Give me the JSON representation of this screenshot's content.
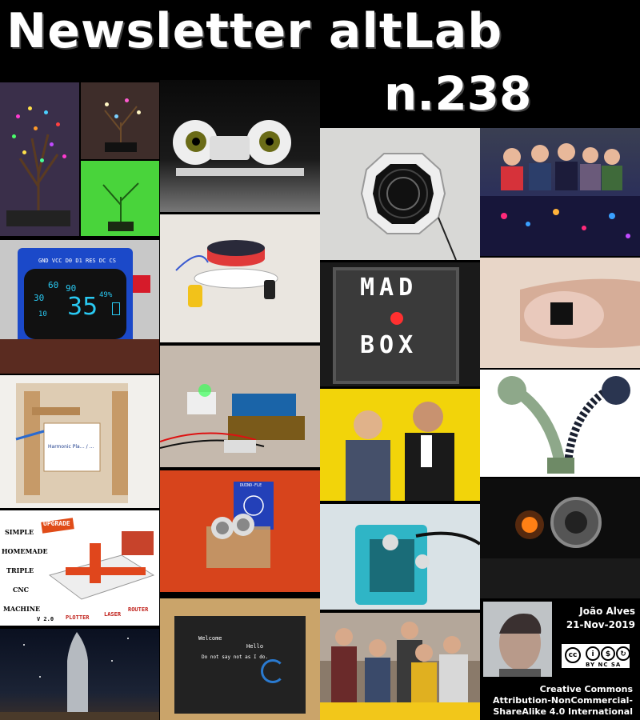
{
  "header": {
    "title": "Newsletter altLab",
    "issue": "n.238"
  },
  "tiles": {
    "oled": {
      "gauge_labels": [
        "30",
        "60",
        "90",
        "10"
      ],
      "value": "35",
      "percent": "49%",
      "pins": "GND VCC D0 D1 RES DC CS"
    },
    "madbox": {
      "line1": "MAD",
      "line2": "BOX"
    },
    "plotter_note": "Harmonic Pla… / …",
    "cnc": {
      "left_words": [
        "SIMPLE",
        "HOMEMADE",
        "TRIPLE",
        "CNC",
        "MACHINE"
      ],
      "badge": "UPGRADE",
      "bottom_labels": [
        "PLOTTER",
        "LASER",
        "ROUTER"
      ],
      "version": "V 2.0"
    },
    "rfid_label": "DUINO-FLE",
    "mirror_text": [
      "Welcome",
      "Hello",
      "Do not say not as I do."
    ]
  },
  "author": {
    "name": "João Alves",
    "date": "21-Nov-2019"
  },
  "license": {
    "badge_label": "BY NC SA",
    "line1": "Creative Commons",
    "line2": "Attribution-NonCommercial-",
    "line3": "ShareAlike 4.0 International"
  },
  "colors": {
    "background": "#000000",
    "text": "#ffffff",
    "oled_cyan": "#29c9f2",
    "oled_bezel": "#111111"
  }
}
